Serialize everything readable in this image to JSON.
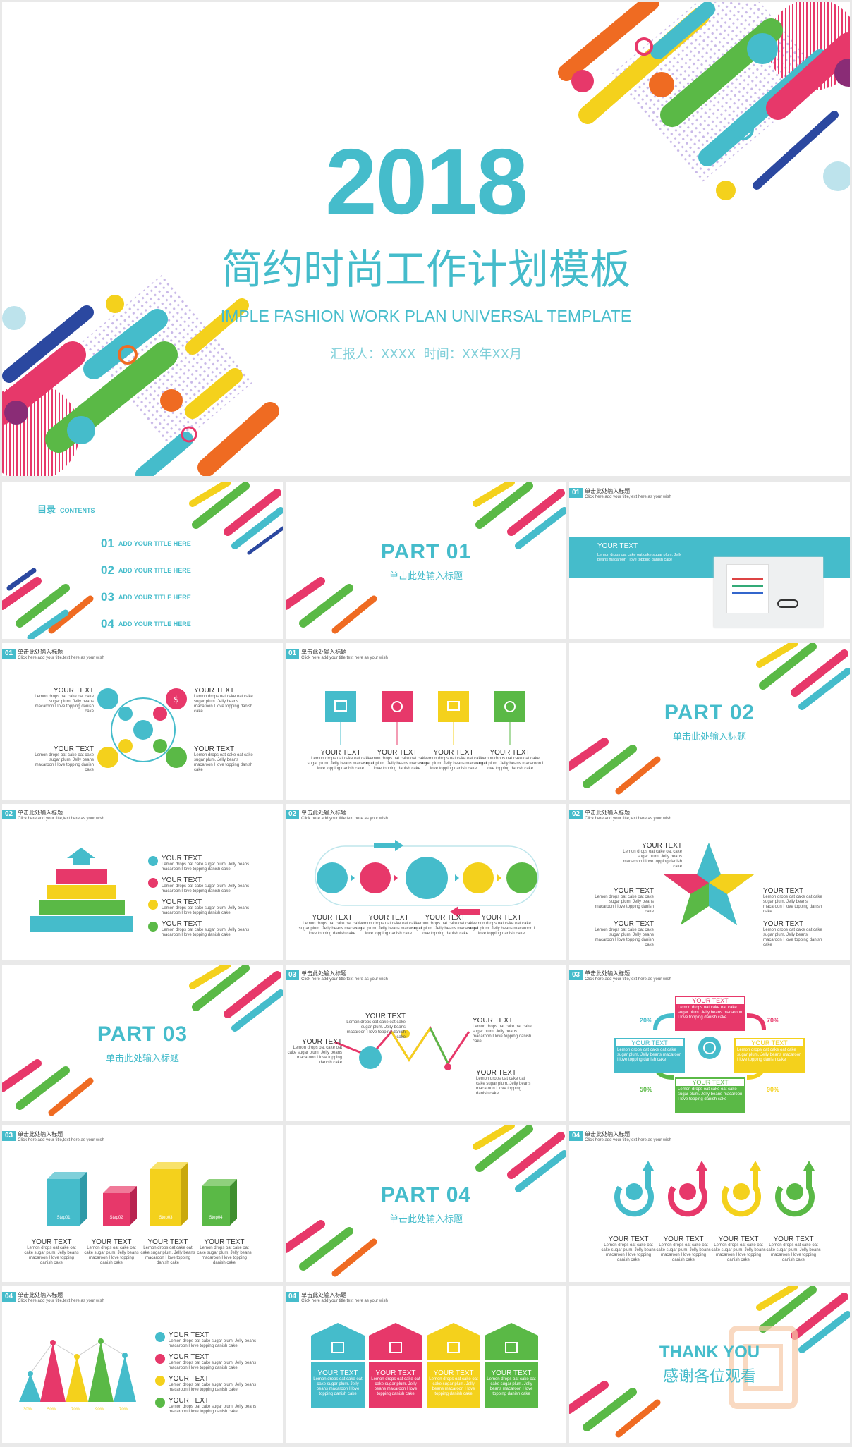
{
  "hero": {
    "year": "2018",
    "title_cn": "简约时尚工作计划模板",
    "title_en": "IMPLE FASHION WORK PLAN UNIVERSAL TEMPLATE",
    "reporter": "汇报人：XXXX  时间：XX年XX月"
  },
  "toc": {
    "title_cn": "目录",
    "title_en": "CONTENTS",
    "items": [
      {
        "num": "01",
        "label": "ADD YOUR TITLE HERE"
      },
      {
        "num": "02",
        "label": "ADD YOUR TITLE HERE"
      },
      {
        "num": "03",
        "label": "ADD YOUR TITLE HERE"
      },
      {
        "num": "04",
        "label": "ADD YOUR TITLE HERE"
      }
    ]
  },
  "common": {
    "header_cn": "单击此处输入标题",
    "header_en": "Click here add your title,text here as your wish",
    "your_text": "YOUR TEXT",
    "lorem": "Lemon drops oat cake oat cake sugar plum. Jelly beans macaroon I love topping danish cake",
    "lorem_long": "Lemon drops oat cake sugar plum. Jelly beans macaroon I love topping danish cake",
    "part_sub": "单击此处输入标题"
  },
  "parts": [
    "PART 01",
    "PART 02",
    "PART 03",
    "PART 04"
  ],
  "part_nums": [
    "01",
    "02",
    "03",
    "04"
  ],
  "percent": {
    "p20": "20%",
    "p70": "70%",
    "p50": "50%",
    "p90": "90%"
  },
  "steps": [
    "Step01",
    "Step02",
    "Step03",
    "Step04"
  ],
  "cones": [
    "30%",
    "50%",
    "70%",
    "90%",
    "70%"
  ],
  "thanks": {
    "en": "THANK YOU",
    "cn": "感谢各位观看"
  },
  "colors": {
    "cyan": "#45bccb",
    "pink": "#e7386a",
    "yellow": "#f4d11c",
    "green": "#5ab946",
    "blue": "#2b48a0",
    "orange": "#ef6b22"
  }
}
